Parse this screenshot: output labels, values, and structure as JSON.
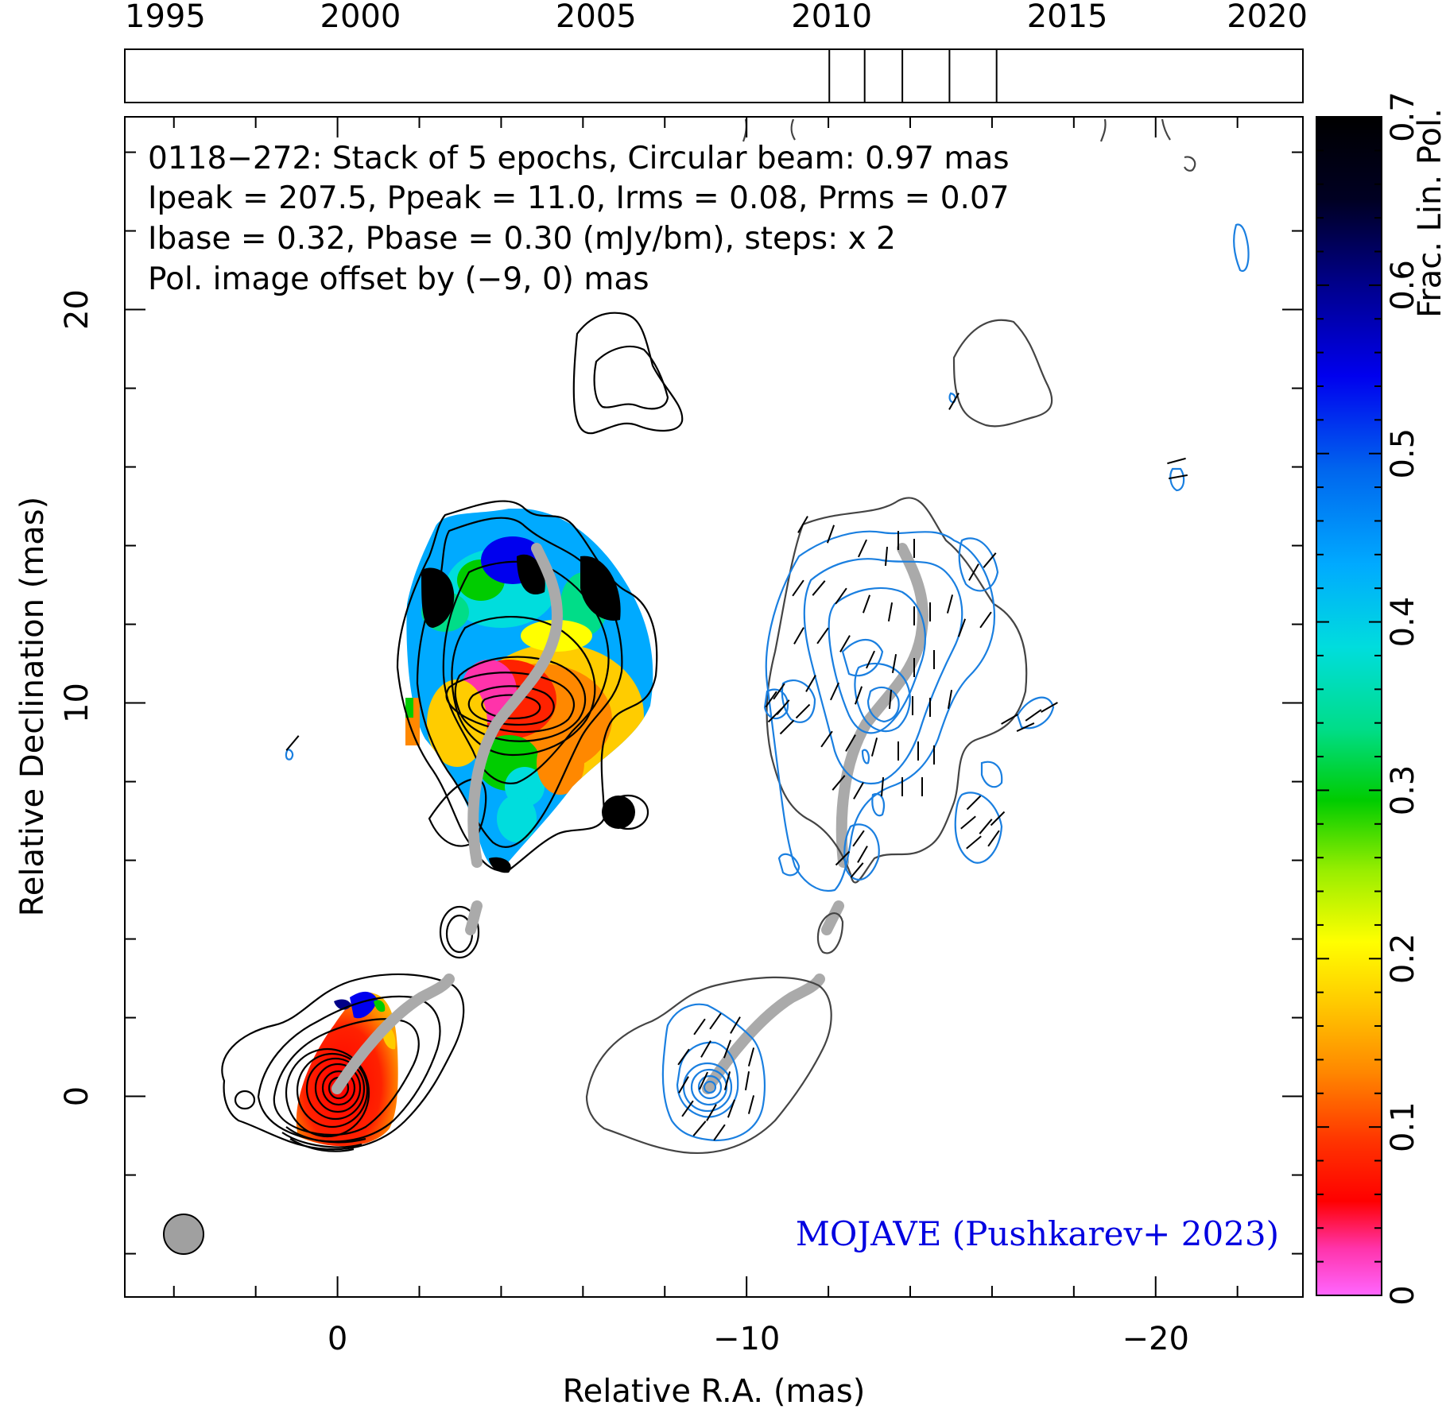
{
  "chart_data": {
    "type": "contour",
    "source_name": "0118−272",
    "info_lines": [
      "0118−272: Stack of 5 epochs, Circular beam: 0.97 mas",
      "Ipeak = 207.5, Ppeak = 11.0, Irms = 0.08, Prms = 0.07",
      "Ibase = 0.32, Pbase = 0.30 (mJy/bm), steps: x 2"
    ],
    "offset_note": "Pol. image offset by (−9, 0) mas",
    "credit": "MOJAVE (Pushkarev+ 2023)",
    "xlabel": "Relative R.A. (mas)",
    "ylabel": "Relative Declination (mas)",
    "xlim": [
      5.2,
      -23.6
    ],
    "ylim": [
      -5.1,
      24.9
    ],
    "x_ticks": [
      0,
      -10,
      -20
    ],
    "x_tick_labels": [
      "0",
      "−10",
      "−20"
    ],
    "y_ticks": [
      0,
      10,
      20
    ],
    "y_tick_labels": [
      "0",
      "10",
      "20"
    ],
    "colorbar": {
      "label": "Frac. Lin. Pol.",
      "range": [
        0,
        0.7
      ],
      "ticks": [
        0,
        0.1,
        0.2,
        0.3,
        0.4,
        0.5,
        0.6,
        0.7
      ],
      "tick_labels": [
        "0",
        "0.1",
        "0.2",
        "0.3",
        "0.4",
        "0.5",
        "0.6",
        "0.7"
      ]
    },
    "timeline": {
      "range": [
        1995,
        2020
      ],
      "tick_labels": [
        "1995",
        "2000",
        "2005",
        "2010",
        "2015",
        "2020"
      ],
      "epochs": [
        2009.95,
        2010.7,
        2011.5,
        2012.5,
        2013.5
      ]
    },
    "beam_diameter_mas": 0.97,
    "pol_offset_mas": [
      -9,
      0
    ],
    "colors": {
      "total_intensity_contours": "#000000",
      "offset_intensity_contours": "#444444",
      "pol_contours": "#1a7fe0",
      "ridgeline": "#aaaaaa",
      "note_text": "#1a7fe0",
      "credit_text": "#0000e0",
      "beam": "#a0a0a0"
    }
  }
}
